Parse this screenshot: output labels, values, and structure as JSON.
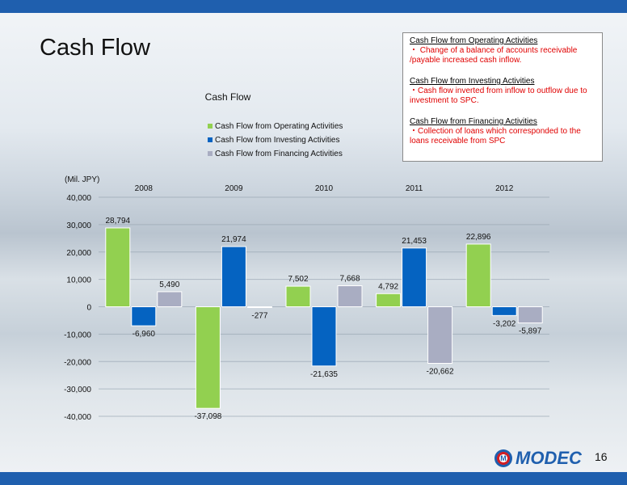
{
  "slide": {
    "title": "Cash Flow",
    "page_number": "16",
    "logo_text": "MODEC",
    "logo_mark": "M"
  },
  "notes": [
    {
      "heading": "Cash Flow from Operating Activities",
      "body": "・ Change of a balance of accounts receivable /payable increased cash inflow."
    },
    {
      "heading": "Cash Flow from Investing Activities",
      "body": "・Cash flow inverted from inflow to outflow due to investment to SPC."
    },
    {
      "heading": "Cash Flow from Financing Activities",
      "body": "・Collection of loans which corresponded to the loans receivable from SPC"
    }
  ],
  "colors": {
    "operating": "#92d050",
    "investing": "#0563c1",
    "financing": "#a9adc2",
    "band": "#1f5fae",
    "note_text": "#e00000"
  },
  "chart_data": {
    "type": "bar",
    "title": "Cash Flow",
    "ylabel": "(Mil. JPY)",
    "categories": [
      "2008",
      "2009",
      "2010",
      "2011",
      "2012"
    ],
    "category_position": "top",
    "series": [
      {
        "name": "Cash Flow from Operating Activities",
        "values": [
          28794,
          -37098,
          7502,
          4792,
          22896
        ],
        "labels": [
          "28,794",
          "-37,098",
          "7,502",
          "4,792",
          "22,896"
        ]
      },
      {
        "name": "Cash Flow from Investing Activities",
        "values": [
          -6960,
          21974,
          -21635,
          21453,
          -3202
        ],
        "labels": [
          "-6,960",
          "21,974",
          "-21,635",
          "21,453",
          "-3,202"
        ]
      },
      {
        "name": "Cash Flow from Financing Activities",
        "values": [
          5490,
          -277,
          7668,
          -20662,
          -5897
        ],
        "labels": [
          "5,490",
          "-277",
          "7,668",
          "-20,662",
          "-5,897"
        ]
      }
    ],
    "ylim": [
      -40000,
      40000
    ],
    "yticks": [
      40000,
      30000,
      20000,
      10000,
      0,
      -10000,
      -20000,
      -30000,
      -40000
    ],
    "ytick_labels": [
      "40,000",
      "30,000",
      "20,000",
      "10,000",
      "0",
      "-10,000",
      "-20,000",
      "-30,000",
      "-40,000"
    ],
    "legend_position": "top",
    "grid": true
  }
}
